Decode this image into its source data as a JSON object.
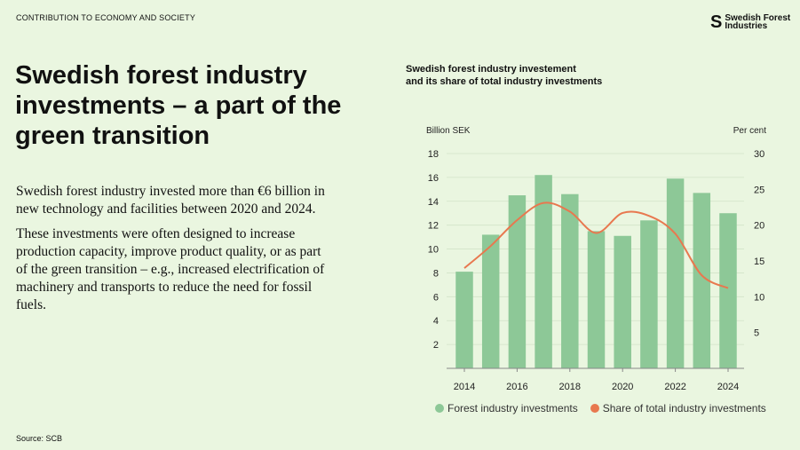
{
  "header": {
    "section": "CONTRIBUTION TO ECONOMY AND SOCIETY",
    "logo_text": "Swedish Forest Industries"
  },
  "title": "Swedish forest industry investments – a part of the green transition",
  "body": {
    "p1": "Swedish forest industry invested more than €6 billion in new technology and facilities between 2020 and 2024.",
    "p2": "These investments were often designed to increase production capacity, improve product quality, or as part of the green transition – e.g., increased electrification of machinery and transports to reduce the need for fossil fuels."
  },
  "source": "Source: SCB",
  "colors": {
    "background": "#eaf6e0",
    "bar": "#8dc897",
    "line": "#e8784f"
  },
  "chart_data": {
    "type": "bar",
    "title": "Swedish forest industry investement and its share of total industry investments",
    "title_line1": "Swedish forest industry investement",
    "title_line2": "and its share of total industry investments",
    "categories": [
      2014,
      2015,
      2016,
      2017,
      2018,
      2019,
      2020,
      2021,
      2022,
      2023,
      2024
    ],
    "x_tick_labels": [
      "2014",
      "2016",
      "2018",
      "2020",
      "2022",
      "2024"
    ],
    "ylabel": "Billion SEK",
    "ylim": [
      0,
      18
    ],
    "y_ticks": [
      "2",
      "4",
      "6",
      "8",
      "10",
      "12",
      "14",
      "16",
      "18"
    ],
    "y2label": "Per cent",
    "y2lim": [
      0,
      30
    ],
    "y2_ticks": [
      "5",
      "10",
      "15",
      "20",
      "25",
      "30"
    ],
    "grid": true,
    "legend": "bottom",
    "series": [
      {
        "name": "Forest industry investments",
        "type": "bar",
        "axis": "left",
        "values": [
          8.1,
          11.2,
          14.5,
          16.2,
          14.6,
          11.5,
          11.1,
          12.4,
          15.9,
          14.7,
          13.0
        ]
      },
      {
        "name": "Share of total industry investments",
        "type": "line",
        "axis": "right",
        "values": [
          14.0,
          17.1,
          20.7,
          23.1,
          21.9,
          18.9,
          21.7,
          21.3,
          18.8,
          13.0,
          11.2
        ]
      }
    ]
  }
}
